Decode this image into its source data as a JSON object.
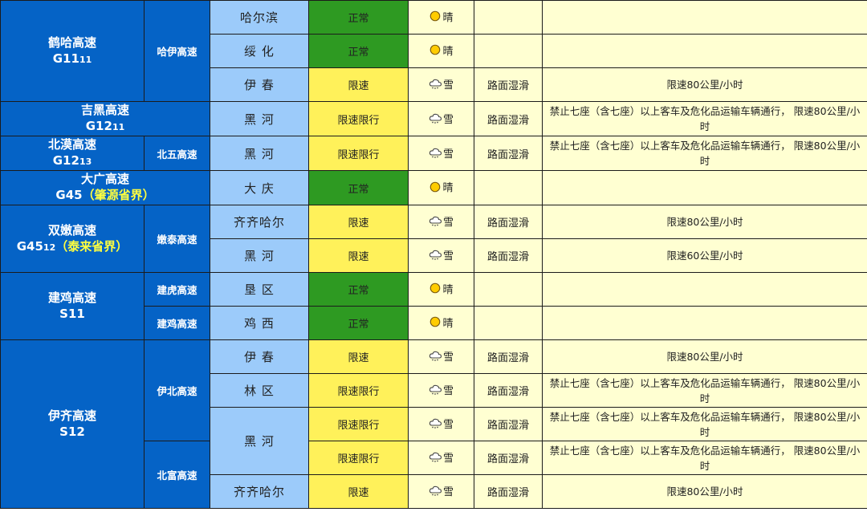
{
  "colors": {
    "highway": "#0563C6",
    "city": "#9ccbfa",
    "normal": "#2e9a22",
    "limit": "#fff15a",
    "info": "#ffffd2",
    "note": "#ffff40"
  },
  "groups": [
    {
      "name": "鹤哈高速",
      "code": "G11",
      "code_sub": "11",
      "note": "",
      "row_count": 3,
      "subroutes": [
        {
          "name": "哈伊高速",
          "row_count": 3
        }
      ]
    },
    {
      "name": "吉黑高速",
      "code": "G12",
      "code_sub": "11",
      "note": "",
      "row_count": 1,
      "subroutes": []
    },
    {
      "name": "北漠高速",
      "code": "G12",
      "code_sub": "13",
      "note": "",
      "row_count": 1,
      "subroutes": [
        {
          "name": "北五高速",
          "row_count": 1
        }
      ]
    },
    {
      "name": "大广高速",
      "code": "G45",
      "code_sub": "",
      "note": "（肇源省界）",
      "row_count": 1,
      "subroutes": []
    },
    {
      "name": "双嫩高速",
      "code": "G45",
      "code_sub": "12",
      "note": "（泰来省界）",
      "row_count": 2,
      "subroutes": [
        {
          "name": "嫩泰高速",
          "row_count": 2
        }
      ]
    },
    {
      "name": "建鸡高速",
      "code": "S11",
      "code_sub": "",
      "note": "",
      "row_count": 2,
      "subroutes": [
        {
          "name": "建虎高速",
          "row_count": 1
        },
        {
          "name": "建鸡高速",
          "row_count": 1
        }
      ]
    },
    {
      "name": "伊齐高速",
      "code": "S12",
      "code_sub": "",
      "note": "",
      "row_count": 5,
      "subroutes": [
        {
          "name": "伊北高速",
          "row_count": 3
        },
        {
          "name": "北富高速",
          "row_count": 2
        }
      ]
    }
  ],
  "rows": [
    {
      "city": "哈尔滨",
      "city_rows": 1,
      "status": "正常",
      "status_type": "normal",
      "weather": "晴",
      "weather_icon": "sun-icon",
      "road": "",
      "notice": ""
    },
    {
      "city": "绥 化",
      "city_rows": 1,
      "status": "正常",
      "status_type": "normal",
      "weather": "晴",
      "weather_icon": "sun-icon",
      "road": "",
      "notice": ""
    },
    {
      "city": "伊 春",
      "city_rows": 1,
      "status": "限速",
      "status_type": "limit",
      "weather": "雪",
      "weather_icon": "snow-cloud-icon",
      "road": "路面湿滑",
      "notice": "限速80公里/小时"
    },
    {
      "city": "黑 河",
      "city_rows": 1,
      "status": "限速限行",
      "status_type": "limit",
      "weather": "雪",
      "weather_icon": "snow-cloud-icon",
      "road": "路面湿滑",
      "notice": "禁止七座（含七座）以上客车及危化品运输车辆通行， 限速80公里/小时"
    },
    {
      "city": "黑 河",
      "city_rows": 1,
      "status": "限速限行",
      "status_type": "limit",
      "weather": "雪",
      "weather_icon": "snow-cloud-icon",
      "road": "路面湿滑",
      "notice": "禁止七座（含七座）以上客车及危化品运输车辆通行， 限速80公里/小时"
    },
    {
      "city": "大 庆",
      "city_rows": 1,
      "status": "正常",
      "status_type": "normal",
      "weather": "晴",
      "weather_icon": "sun-icon",
      "road": "",
      "notice": ""
    },
    {
      "city": "齐齐哈尔",
      "city_rows": 1,
      "status": "限速",
      "status_type": "limit",
      "weather": "雪",
      "weather_icon": "snow-cloud-icon",
      "road": "路面湿滑",
      "notice": "限速80公里/小时"
    },
    {
      "city": "黑 河",
      "city_rows": 1,
      "status": "限速",
      "status_type": "limit",
      "weather": "雪",
      "weather_icon": "snow-cloud-icon",
      "road": "路面湿滑",
      "notice": "限速60公里/小时"
    },
    {
      "city": "垦 区",
      "city_rows": 1,
      "status": "正常",
      "status_type": "normal",
      "weather": "晴",
      "weather_icon": "sun-icon",
      "road": "",
      "notice": ""
    },
    {
      "city": "鸡 西",
      "city_rows": 1,
      "status": "正常",
      "status_type": "normal",
      "weather": "晴",
      "weather_icon": "sun-icon",
      "road": "",
      "notice": ""
    },
    {
      "city": "伊 春",
      "city_rows": 1,
      "status": "限速",
      "status_type": "limit",
      "weather": "雪",
      "weather_icon": "snow-cloud-icon",
      "road": "路面湿滑",
      "notice": "限速80公里/小时"
    },
    {
      "city": "林 区",
      "city_rows": 1,
      "status": "限速限行",
      "status_type": "limit",
      "weather": "雪",
      "weather_icon": "snow-cloud-icon",
      "road": "路面湿滑",
      "notice": "禁止七座（含七座）以上客车及危化品运输车辆通行， 限速80公里/小时"
    },
    {
      "city": "黑 河",
      "city_rows": 2,
      "status": "限速限行",
      "status_type": "limit",
      "weather": "雪",
      "weather_icon": "snow-cloud-icon",
      "road": "路面湿滑",
      "notice": "禁止七座（含七座）以上客车及危化品运输车辆通行， 限速80公里/小时"
    },
    {
      "city": null,
      "city_rows": 0,
      "status": "限速限行",
      "status_type": "limit",
      "weather": "雪",
      "weather_icon": "snow-cloud-icon",
      "road": "路面湿滑",
      "notice": "禁止七座（含七座）以上客车及危化品运输车辆通行， 限速80公里/小时"
    },
    {
      "city": "齐齐哈尔",
      "city_rows": 1,
      "status": "限速",
      "status_type": "limit",
      "weather": "雪",
      "weather_icon": "snow-cloud-icon",
      "road": "路面湿滑",
      "notice": "限速80公里/小时"
    }
  ]
}
